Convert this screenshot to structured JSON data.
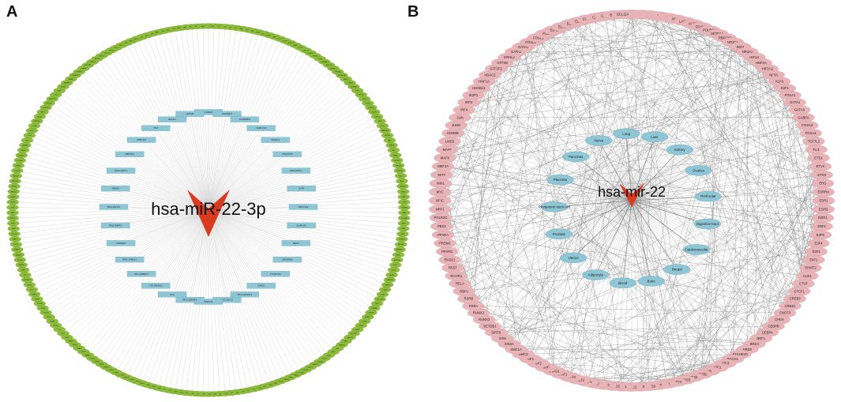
{
  "panels": {
    "a": {
      "label": "A",
      "center": "hsa-miR-22-3p",
      "inner_nodes": [
        "CTD-3092A11.2",
        "LINC00847",
        "AC108488.3",
        "FGD5-AS1",
        "SNHG12",
        "LINC01578",
        "RP11-1M18.1",
        "ACP5",
        "TMPO-AS1",
        "OLMALINC",
        "NEAT1",
        "LINC00665",
        "TTC28-AS1",
        "CASC2",
        "RP11-163G10.3",
        "RP11-3A13.1",
        "SNHG15",
        "RP11-203J24.9",
        "GCA",
        "CTD-2600O9.1",
        "RP1-239B22.5",
        "RP11-274B21.1",
        "COMMD1",
        "RP11-360F5.1",
        "RP11-481J2.2",
        "SNHG6",
        "RP11-1D12.2",
        "MIR17HG",
        "OIP5-AS1",
        "XIST",
        "MALAT1",
        "HOTAIR"
      ],
      "outer_nodes": [
        "PTEN",
        "HDAC4",
        "ESR1",
        "SP1",
        "MYC",
        "CDK6",
        "SIRT1",
        "TET2",
        "MAX",
        "PPARA",
        "CD147",
        "TP53INP1",
        "ZEB1",
        "NCOA1",
        "NCOR2",
        "HMGB1",
        "SNAI1",
        "FOXP1",
        "CDKN1A",
        "KDM3A",
        "HIF1A",
        "IL6R",
        "ERBB3",
        "MECP2",
        "MBNL1",
        "YWHAZ",
        "ACVR2A",
        "BMP7",
        "CCNA2",
        "CTNNB1",
        "E2F1",
        "EIF4E",
        "ELK4",
        "ETS1",
        "FOXO1",
        "GLUT1",
        "IGF1R",
        "JAK1",
        "KLF4",
        "MAP3K3",
        "MDM2",
        "MET",
        "MMP2",
        "NF1",
        "NRAS",
        "PDCD4",
        "PIK3CA",
        "PTPRZ1",
        "RAC1",
        "RB1",
        "SMAD4",
        "SOX4",
        "STAT3",
        "TCF4",
        "TGFBR1",
        "TIAM1",
        "VEGFA",
        "WNT1",
        "XIAP",
        "YAP1",
        "ZNF281",
        "ABCA1",
        "ADAM17",
        "AKT1",
        "ARID1A",
        "ATF1",
        "BCL2",
        "BDNF",
        "CAMK2D",
        "CASP3",
        "CBX5",
        "CD44",
        "CDC25A",
        "CHD7",
        "CREB1",
        "CSF1R",
        "DNMT1",
        "EGFR",
        "EZH2",
        "FGF2",
        "FOXM1",
        "GSK3B",
        "HAS2",
        "HDAC6",
        "ID1",
        "IRF1",
        "JUN",
        "KLF9",
        "LIN28B",
        "MAPK1",
        "MCL1",
        "MYCN",
        "NOTCH1",
        "NFKB1",
        "PAX6",
        "PDGFRA",
        "PRKCA",
        "PTBP1",
        "RUNX2",
        "SIRT6",
        "SOCS3",
        "SP3",
        "TAZ",
        "TGFB1",
        "TLR4",
        "TNF",
        "TWIST1",
        "VIM",
        "WEE1",
        "ZNF217",
        "ATG5",
        "BMI1",
        "CDH1",
        "CRK",
        "DUSP6",
        "EPHA2",
        "FOSL1",
        "GLI1",
        "HMGA2",
        "IKBKB",
        "KRAS",
        "LATS2",
        "MAPK14",
        "MDM4",
        "NANOG",
        "NOTCH2",
        "PDK1",
        "PLAG1",
        "RAB10",
        "RHOC",
        "S1PR1",
        "SETD8",
        "SMAD2",
        "SOX2",
        "STAT1",
        "TGIF1",
        "TRAF6",
        "USP7",
        "WT1",
        "YY1",
        "ZEB2",
        "ADAR",
        "BCL6",
        "CCND1",
        "CDK4",
        "CXCR4",
        "E2F3",
        "ERK2",
        "FZD7",
        "HES1",
        "IGF2BP1",
        "KIT",
        "LRP6",
        "MAPK8",
        "MTOR",
        "NR4A1",
        "PARP1",
        "PLK1",
        "RAF1",
        "ROCK1",
        "SHH",
        "SMO",
        "SPRY2",
        "TAB2",
        "TLR2",
        "TNKS",
        "UBE2C",
        "WNT5A",
        "ZFP36",
        "AURKA",
        "BRCA1",
        "CDC42",
        "CHEK1",
        "DICER1",
        "ELAVL1",
        "FASN",
        "GATA3",
        "HK2",
        "IL1B",
        "KLF5",
        "LDHA",
        "MAP2K1",
        "MUC1",
        "NRP1",
        "PFKFB3",
        "PRDM1",
        "RB1CC1",
        "SCD",
        "SIX1",
        "SOX9",
        "SREBF1",
        "TEAD1",
        "TNFAIP3",
        "TRIM24",
        "UHRF1",
        "WWTR1",
        "ZNF367",
        "ACTB",
        "BIRC5",
        "CDK1",
        "CHUK",
        "DLL4",
        "EMP1",
        "FN1",
        "GDF15",
        "HMOX1",
        "IL8",
        "KLF6",
        "LEF1",
        "MAP3K7",
        "MYB",
        "NUAK1",
        "PGK1",
        "PRKAA1",
        "RELA",
        "SDC1",
        "SKP2",
        "SP4"
      ]
    },
    "b": {
      "label": "B",
      "center": "hsa-mir-22",
      "tissues": [
        "Liver",
        "Kidney",
        "Ovaries",
        "Prefrontal",
        "Digestive tract",
        "Cardiovascular",
        "Breast",
        "Bone",
        "Blood",
        "Adipocyte",
        "Uterus",
        "Prostate",
        "Pluripotent stem cell",
        "Placenta",
        "Pancreas",
        "Nerve",
        "Lung"
      ],
      "outer_nodes": [
        "MYCN",
        "T",
        "S",
        "M",
        "N",
        "MAX",
        "LARP7",
        "KLF1",
        "FOXM1",
        "POLR2A",
        "SETD1A",
        "RBFOX2",
        "NR3C1",
        "ING3",
        "NR4A1",
        "HIF1A",
        "HNF4A",
        "HIF1A2",
        "NFYA",
        "KLF6",
        "E2F1",
        "FOXA1",
        "GATA4",
        "GATA3",
        "GABPA",
        "FOXA2",
        "FOXA3",
        "TCF7L2",
        "FLI1",
        "ETS1",
        "ETV4",
        "ETS3",
        "ERG",
        "ESRRA",
        "ESR1",
        "EGR3",
        "EGR1",
        "EBF1",
        "E2F6",
        "E2F4",
        "E2F2",
        "E4F1",
        "EHMT2",
        "CUX1",
        "CTCF",
        "CTCFL",
        "CREB3",
        "CREB1",
        "CNOT3",
        "CHD4",
        "CEBPB",
        "CEBPA",
        "BRF1",
        "BRD4",
        "BRD2",
        "BHLHE40",
        "BACH1",
        "ATF3",
        "ATF1",
        "AR",
        "ZNF750",
        "E2F1b",
        "ZNF263",
        "ZBTB7A",
        "YY1",
        "VDR",
        "TRIM28",
        "TP63",
        "TCF12",
        "TAL1",
        "TFAP2C",
        "TCF3",
        "TBP",
        "TAF1",
        "SUZ12",
        "STAT3",
        "STAT1",
        "STAG1",
        "SRF",
        "SP2",
        "SP1",
        "SMC3",
        "SMC1A",
        "SIN3A",
        "SIX5",
        "SIRT6",
        "SETDB1",
        "RUNX3",
        "RUNX1",
        "RXRA",
        "RXRB",
        "RBPJ",
        "RELA",
        "RCOR1",
        "REST",
        "RAD21",
        "PPARG",
        "PRDM1",
        "PPARA",
        "PBX3",
        "POLR2G",
        "NRF1",
        "NFIC",
        "MYC",
        "MXI1",
        "MITF",
        "MEF2A",
        "MAFK",
        "MAFF",
        "LMO2",
        "KDM5B",
        "JUND",
        "JUN",
        "IRF4",
        "IRF3",
        "IKZF1",
        "HOXB13",
        "HNF1A",
        "HDAC2",
        "GTF2F1",
        "GTF2B",
        "GRHL2",
        "GATA2",
        "GATA1",
        "FOSL2",
        "FOSL1",
        "FOS",
        "EZH2",
        "ELK1",
        "ELF1",
        "EBF3",
        "CTBP2",
        "CBX5",
        "CBX3",
        "BCL3",
        "BCL11A"
      ]
    }
  }
}
